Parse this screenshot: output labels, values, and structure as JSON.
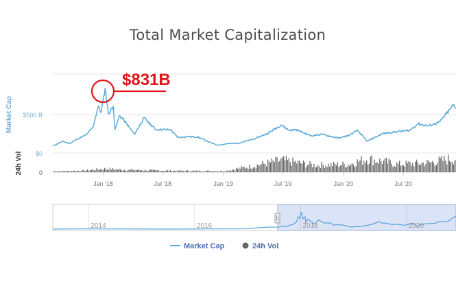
{
  "chart_data": {
    "type": "line",
    "title": "Total Market Capitalization",
    "ylabel_main": "Market Cap",
    "ylabel_volume": "24h Vol",
    "main_y_ticks": [
      "$500 B",
      "$0"
    ],
    "volume_y_ticks": [
      "0"
    ],
    "x_ticks": [
      "Jan '18",
      "Jul '18",
      "Jan '19",
      "Jul '19",
      "Jan '20",
      "Jul '20"
    ],
    "navigator_ticks": [
      "2014",
      "2016",
      "2018",
      "2020"
    ],
    "annotation": {
      "label": "$831B",
      "date": "2018-01-07",
      "value": 831
    },
    "series": [
      {
        "name": "Market Cap",
        "color": "#5aaad8",
        "unit": "billion USD",
        "points": [
          [
            "2017-08-01",
            90
          ],
          [
            "2017-09-01",
            150
          ],
          [
            "2017-09-20",
            120
          ],
          [
            "2017-10-15",
            180
          ],
          [
            "2017-11-10",
            230
          ],
          [
            "2017-12-01",
            330
          ],
          [
            "2017-12-17",
            600
          ],
          [
            "2017-12-26",
            520
          ],
          [
            "2018-01-07",
            831
          ],
          [
            "2018-01-17",
            500
          ],
          [
            "2018-02-01",
            600
          ],
          [
            "2018-02-06",
            300
          ],
          [
            "2018-02-20",
            480
          ],
          [
            "2018-03-05",
            420
          ],
          [
            "2018-04-06",
            240
          ],
          [
            "2018-05-05",
            450
          ],
          [
            "2018-06-10",
            300
          ],
          [
            "2018-07-25",
            300
          ],
          [
            "2018-08-15",
            200
          ],
          [
            "2018-09-15",
            210
          ],
          [
            "2018-10-15",
            205
          ],
          [
            "2018-11-25",
            130
          ],
          [
            "2018-12-15",
            100
          ],
          [
            "2019-01-15",
            120
          ],
          [
            "2019-02-15",
            125
          ],
          [
            "2019-04-05",
            180
          ],
          [
            "2019-05-15",
            250
          ],
          [
            "2019-06-26",
            360
          ],
          [
            "2019-07-20",
            290
          ],
          [
            "2019-08-10",
            300
          ],
          [
            "2019-09-25",
            220
          ],
          [
            "2019-10-26",
            240
          ],
          [
            "2019-12-18",
            190
          ],
          [
            "2020-01-20",
            230
          ],
          [
            "2020-02-13",
            290
          ],
          [
            "2020-03-13",
            150
          ],
          [
            "2020-04-30",
            250
          ],
          [
            "2020-06-15",
            275
          ],
          [
            "2020-07-20",
            290
          ],
          [
            "2020-08-15",
            375
          ],
          [
            "2020-09-15",
            345
          ],
          [
            "2020-10-20",
            400
          ],
          [
            "2020-11-20",
            560
          ],
          [
            "2020-11-30",
            620
          ],
          [
            "2020-12-03",
            590
          ],
          [
            "2020-12-08",
            570
          ]
        ]
      },
      {
        "name": "24h Vol",
        "color": "#666666",
        "note": "daily volume bars, relative level",
        "points": [
          [
            "2017-08-01",
            0.05
          ],
          [
            "2017-11-01",
            0.1
          ],
          [
            "2018-01-07",
            0.22
          ],
          [
            "2018-03-01",
            0.16
          ],
          [
            "2018-07-01",
            0.1
          ],
          [
            "2019-01-01",
            0.07
          ],
          [
            "2019-04-01",
            0.4
          ],
          [
            "2019-06-26",
            0.75
          ],
          [
            "2019-10-01",
            0.45
          ],
          [
            "2020-01-15",
            0.5
          ],
          [
            "2020-03-13",
            0.85
          ],
          [
            "2020-06-15",
            0.5
          ],
          [
            "2020-09-15",
            0.6
          ],
          [
            "2020-12-08",
            0.9
          ]
        ]
      }
    ],
    "navigator": {
      "selected_range": [
        "2017-08-01",
        "2020-12-08"
      ],
      "full_range": [
        "2013-04-28",
        "2020-12-08"
      ]
    },
    "legend": {
      "placement": "bottom-center",
      "items": [
        {
          "label": "Market Cap",
          "color": "#5aaad8",
          "marker": "line"
        },
        {
          "label": "24h Vol",
          "color": "#666666",
          "marker": "circle"
        }
      ]
    },
    "grid": {
      "horizontal": true,
      "vertical": false
    }
  }
}
